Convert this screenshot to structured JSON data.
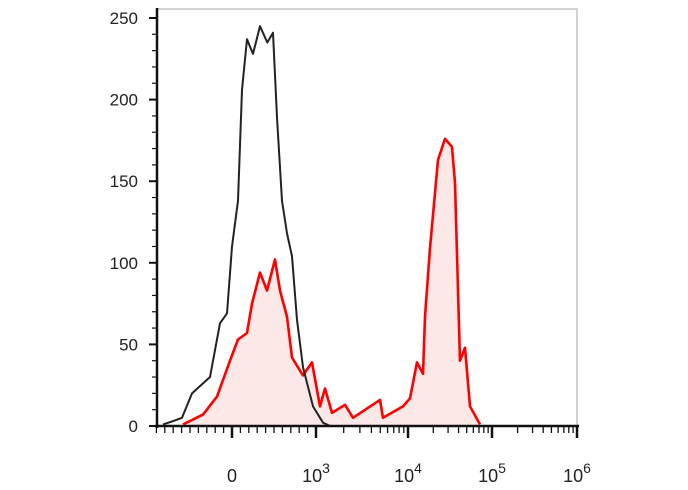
{
  "chart_data": {
    "type": "area",
    "title": "",
    "xlabel": "",
    "ylabel": "",
    "x_scale": "biexponential",
    "xlim": [
      -900,
      1000000
    ],
    "ylim": [
      0,
      250
    ],
    "grid": false,
    "y_ticks": [
      "0",
      "50",
      "100",
      "150",
      "200",
      "250"
    ],
    "y_tick_values": [
      0,
      50,
      100,
      150,
      200,
      250
    ],
    "x_ticks": [
      {
        "value": 0,
        "base": "0",
        "exp": ""
      },
      {
        "value": 1000,
        "base": "10",
        "exp": "3"
      },
      {
        "value": 10000,
        "base": "10",
        "exp": "4"
      },
      {
        "value": 100000,
        "base": "10",
        "exp": "5"
      },
      {
        "value": 1000000,
        "base": "10",
        "exp": "6"
      }
    ],
    "series": [
      {
        "color": "#222222",
        "filled": false,
        "x": [
          -821,
          -700,
          -595,
          -476,
          -262,
          -143,
          -60,
          0,
          71,
          119,
          179,
          250,
          333,
          420,
          488,
          536,
          595,
          655,
          714,
          774,
          845,
          964,
          1191,
          1420,
          2000,
          5000,
          20000
        ],
        "y": [
          1,
          3,
          5,
          20,
          30,
          63,
          69,
          110,
          138,
          206,
          237,
          228,
          245,
          235,
          241,
          189,
          138,
          118,
          104,
          65,
          36,
          12,
          2,
          0,
          0,
          0,
          0
        ]
      },
      {
        "color": "#ff0000",
        "fill": "#fde8e8",
        "filled": true,
        "x": [
          -583,
          -345,
          -179,
          -24,
          71,
          179,
          238,
          333,
          417,
          512,
          571,
          655,
          714,
          845,
          952,
          1105,
          1253,
          1493,
          2065,
          2523,
          4963,
          5346,
          8830,
          10567,
          12790,
          15090,
          15930,
          18280,
          22750,
          27560,
          33400,
          36300,
          41600,
          47700,
          54700,
          71900
        ],
        "y": [
          1,
          7,
          18,
          40,
          53,
          57,
          75,
          94,
          83,
          102,
          83,
          67,
          42,
          31,
          39,
          12,
          23,
          8,
          13,
          5,
          16,
          5,
          12,
          17,
          39,
          32,
          67,
          109,
          163,
          176,
          171,
          149,
          40,
          48,
          12,
          1
        ]
      }
    ]
  }
}
